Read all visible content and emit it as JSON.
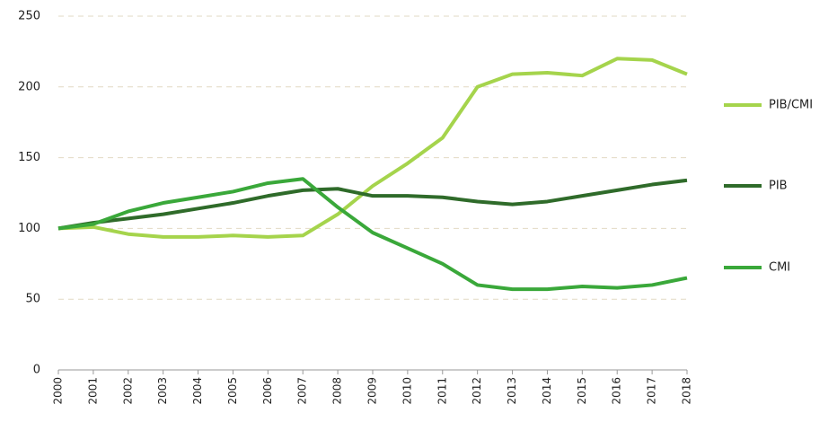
{
  "chart_data": {
    "type": "line",
    "categories": [
      "2000",
      "2001",
      "2002",
      "2003",
      "2004",
      "2005",
      "2006",
      "2007",
      "2008",
      "2009",
      "2010",
      "2011",
      "2012",
      "2013",
      "2014",
      "2015",
      "2016",
      "2017",
      "2018"
    ],
    "series": [
      {
        "name": "PIB/CMI",
        "color": "#a5d44c",
        "values": [
          100,
          101,
          96,
          94,
          94,
          95,
          94,
          95,
          110,
          130,
          146,
          164,
          200,
          209,
          210,
          208,
          220,
          219,
          209
        ]
      },
      {
        "name": "PIB",
        "color": "#2f6b2a",
        "values": [
          100,
          104,
          107,
          110,
          114,
          118,
          123,
          127,
          128,
          123,
          123,
          122,
          119,
          117,
          119,
          123,
          127,
          131,
          134
        ]
      },
      {
        "name": "CMI",
        "color": "#3aa83a",
        "values": [
          100,
          103,
          112,
          118,
          122,
          126,
          132,
          135,
          115,
          97,
          86,
          75,
          60,
          57,
          57,
          59,
          58,
          60,
          65
        ]
      }
    ],
    "ylim": [
      0,
      250
    ],
    "yticks": [
      0,
      50,
      100,
      150,
      200,
      250
    ],
    "grid": true
  }
}
